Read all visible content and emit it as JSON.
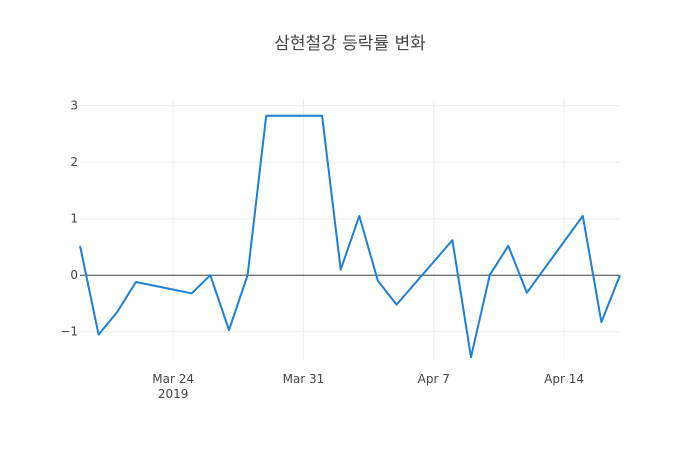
{
  "chart_data": {
    "type": "line",
    "title": "삼현철강 등락률 변화",
    "xlabel": "",
    "ylabel": "",
    "x_axis_type": "date",
    "xlim": [
      "2019-03-19",
      "2019-04-17"
    ],
    "ylim": [
      -1.5,
      3.1
    ],
    "x_ticks": [
      {
        "date": "2019-03-24",
        "label": "Mar 24",
        "sublabel": "2019"
      },
      {
        "date": "2019-03-31",
        "label": "Mar 31",
        "sublabel": ""
      },
      {
        "date": "2019-04-07",
        "label": "Apr 7",
        "sublabel": ""
      },
      {
        "date": "2019-04-14",
        "label": "Apr 14",
        "sublabel": ""
      }
    ],
    "y_ticks": [
      {
        "value": -1,
        "label": "−1"
      },
      {
        "value": 0,
        "label": "0"
      },
      {
        "value": 1,
        "label": "1"
      },
      {
        "value": 2,
        "label": "2"
      },
      {
        "value": 3,
        "label": "3"
      }
    ],
    "grid": true,
    "zero_line": true,
    "line_color": "#1f7fd6",
    "series": [
      {
        "points": [
          {
            "x": "2019-03-19",
            "y": 0.52
          },
          {
            "x": "2019-03-20",
            "y": -1.05
          },
          {
            "x": "2019-03-21",
            "y": -0.65
          },
          {
            "x": "2019-03-22",
            "y": -0.12
          },
          {
            "x": "2019-03-25",
            "y": -0.32
          },
          {
            "x": "2019-03-26",
            "y": 0.0
          },
          {
            "x": "2019-03-27",
            "y": -0.97
          },
          {
            "x": "2019-03-28",
            "y": 0.0
          },
          {
            "x": "2019-03-29",
            "y": 2.82
          },
          {
            "x": "2019-04-01",
            "y": 2.82
          },
          {
            "x": "2019-04-02",
            "y": 0.1
          },
          {
            "x": "2019-04-03",
            "y": 1.05
          },
          {
            "x": "2019-04-04",
            "y": -0.1
          },
          {
            "x": "2019-04-05",
            "y": -0.52
          },
          {
            "x": "2019-04-08",
            "y": 0.62
          },
          {
            "x": "2019-04-09",
            "y": -1.45
          },
          {
            "x": "2019-04-10",
            "y": 0.0
          },
          {
            "x": "2019-04-11",
            "y": 0.52
          },
          {
            "x": "2019-04-12",
            "y": -0.31
          },
          {
            "x": "2019-04-15",
            "y": 1.05
          },
          {
            "x": "2019-04-16",
            "y": -0.83
          },
          {
            "x": "2019-04-17",
            "y": 0.0
          }
        ]
      }
    ]
  }
}
